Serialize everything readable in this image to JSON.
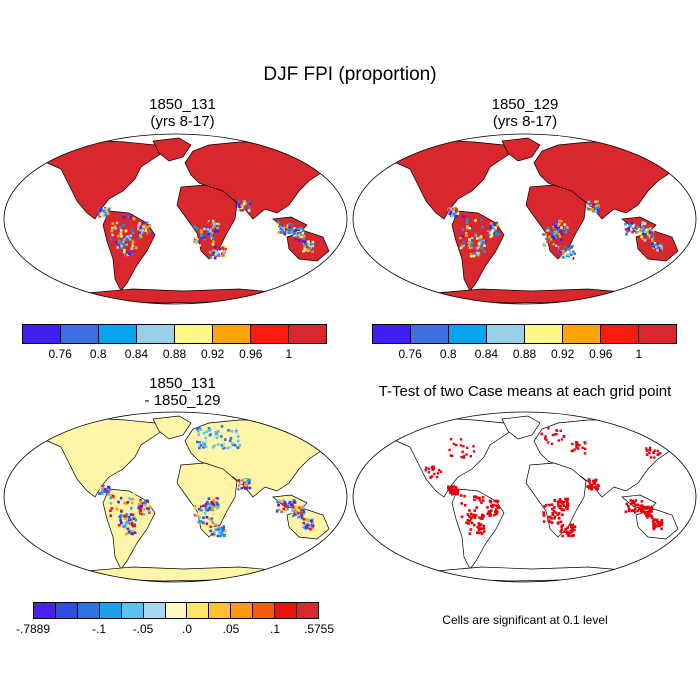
{
  "figure": {
    "title": "DJF FPI (proportion)",
    "note": "Cells are significant at 0.1 level"
  },
  "panels": [
    {
      "title_line1": "1850_131",
      "title_line2": "(yrs 8-17)",
      "fill": "#d8272d",
      "tropics": "mixed-blue"
    },
    {
      "title_line1": "1850_129",
      "title_line2": "(yrs 8-17)",
      "fill": "#d8272d",
      "tropics": "mixed-blue"
    },
    {
      "title_line1": "1850_131",
      "title_line2": "- 1850_129",
      "fill": "#fef5a8",
      "tropics": "mixed-diff"
    },
    {
      "title_line1": "T-Test of two Case means at each grid point",
      "title_line2": "",
      "fill": "#ffffff",
      "tropics": "significance"
    }
  ],
  "colorbar_top": {
    "colors": [
      "#3f1ff2",
      "#3f6fdf",
      "#09a4ef",
      "#96cfe6",
      "#fff686",
      "#fca40c",
      "#fd1a10",
      "#d8272d"
    ],
    "labels": [
      "0.76",
      "0.8",
      "0.84",
      "0.88",
      "0.92",
      "0.96",
      "1"
    ]
  },
  "colorbar_diff": {
    "colors": [
      "#4a1ef5",
      "#2f4ee0",
      "#2f73e3",
      "#1aa0ee",
      "#5ac3ef",
      "#a6d9f0",
      "#fef9c4",
      "#fee36a",
      "#fec231",
      "#fc9a0a",
      "#fc5a0a",
      "#f0110f",
      "#d8272d"
    ],
    "labels": [
      "-.7889",
      "-.1",
      "-.05",
      ".0",
      ".05",
      ".1",
      ".5755"
    ],
    "label_positions": [
      0,
      3,
      5,
      7,
      9,
      11,
      13
    ]
  }
}
